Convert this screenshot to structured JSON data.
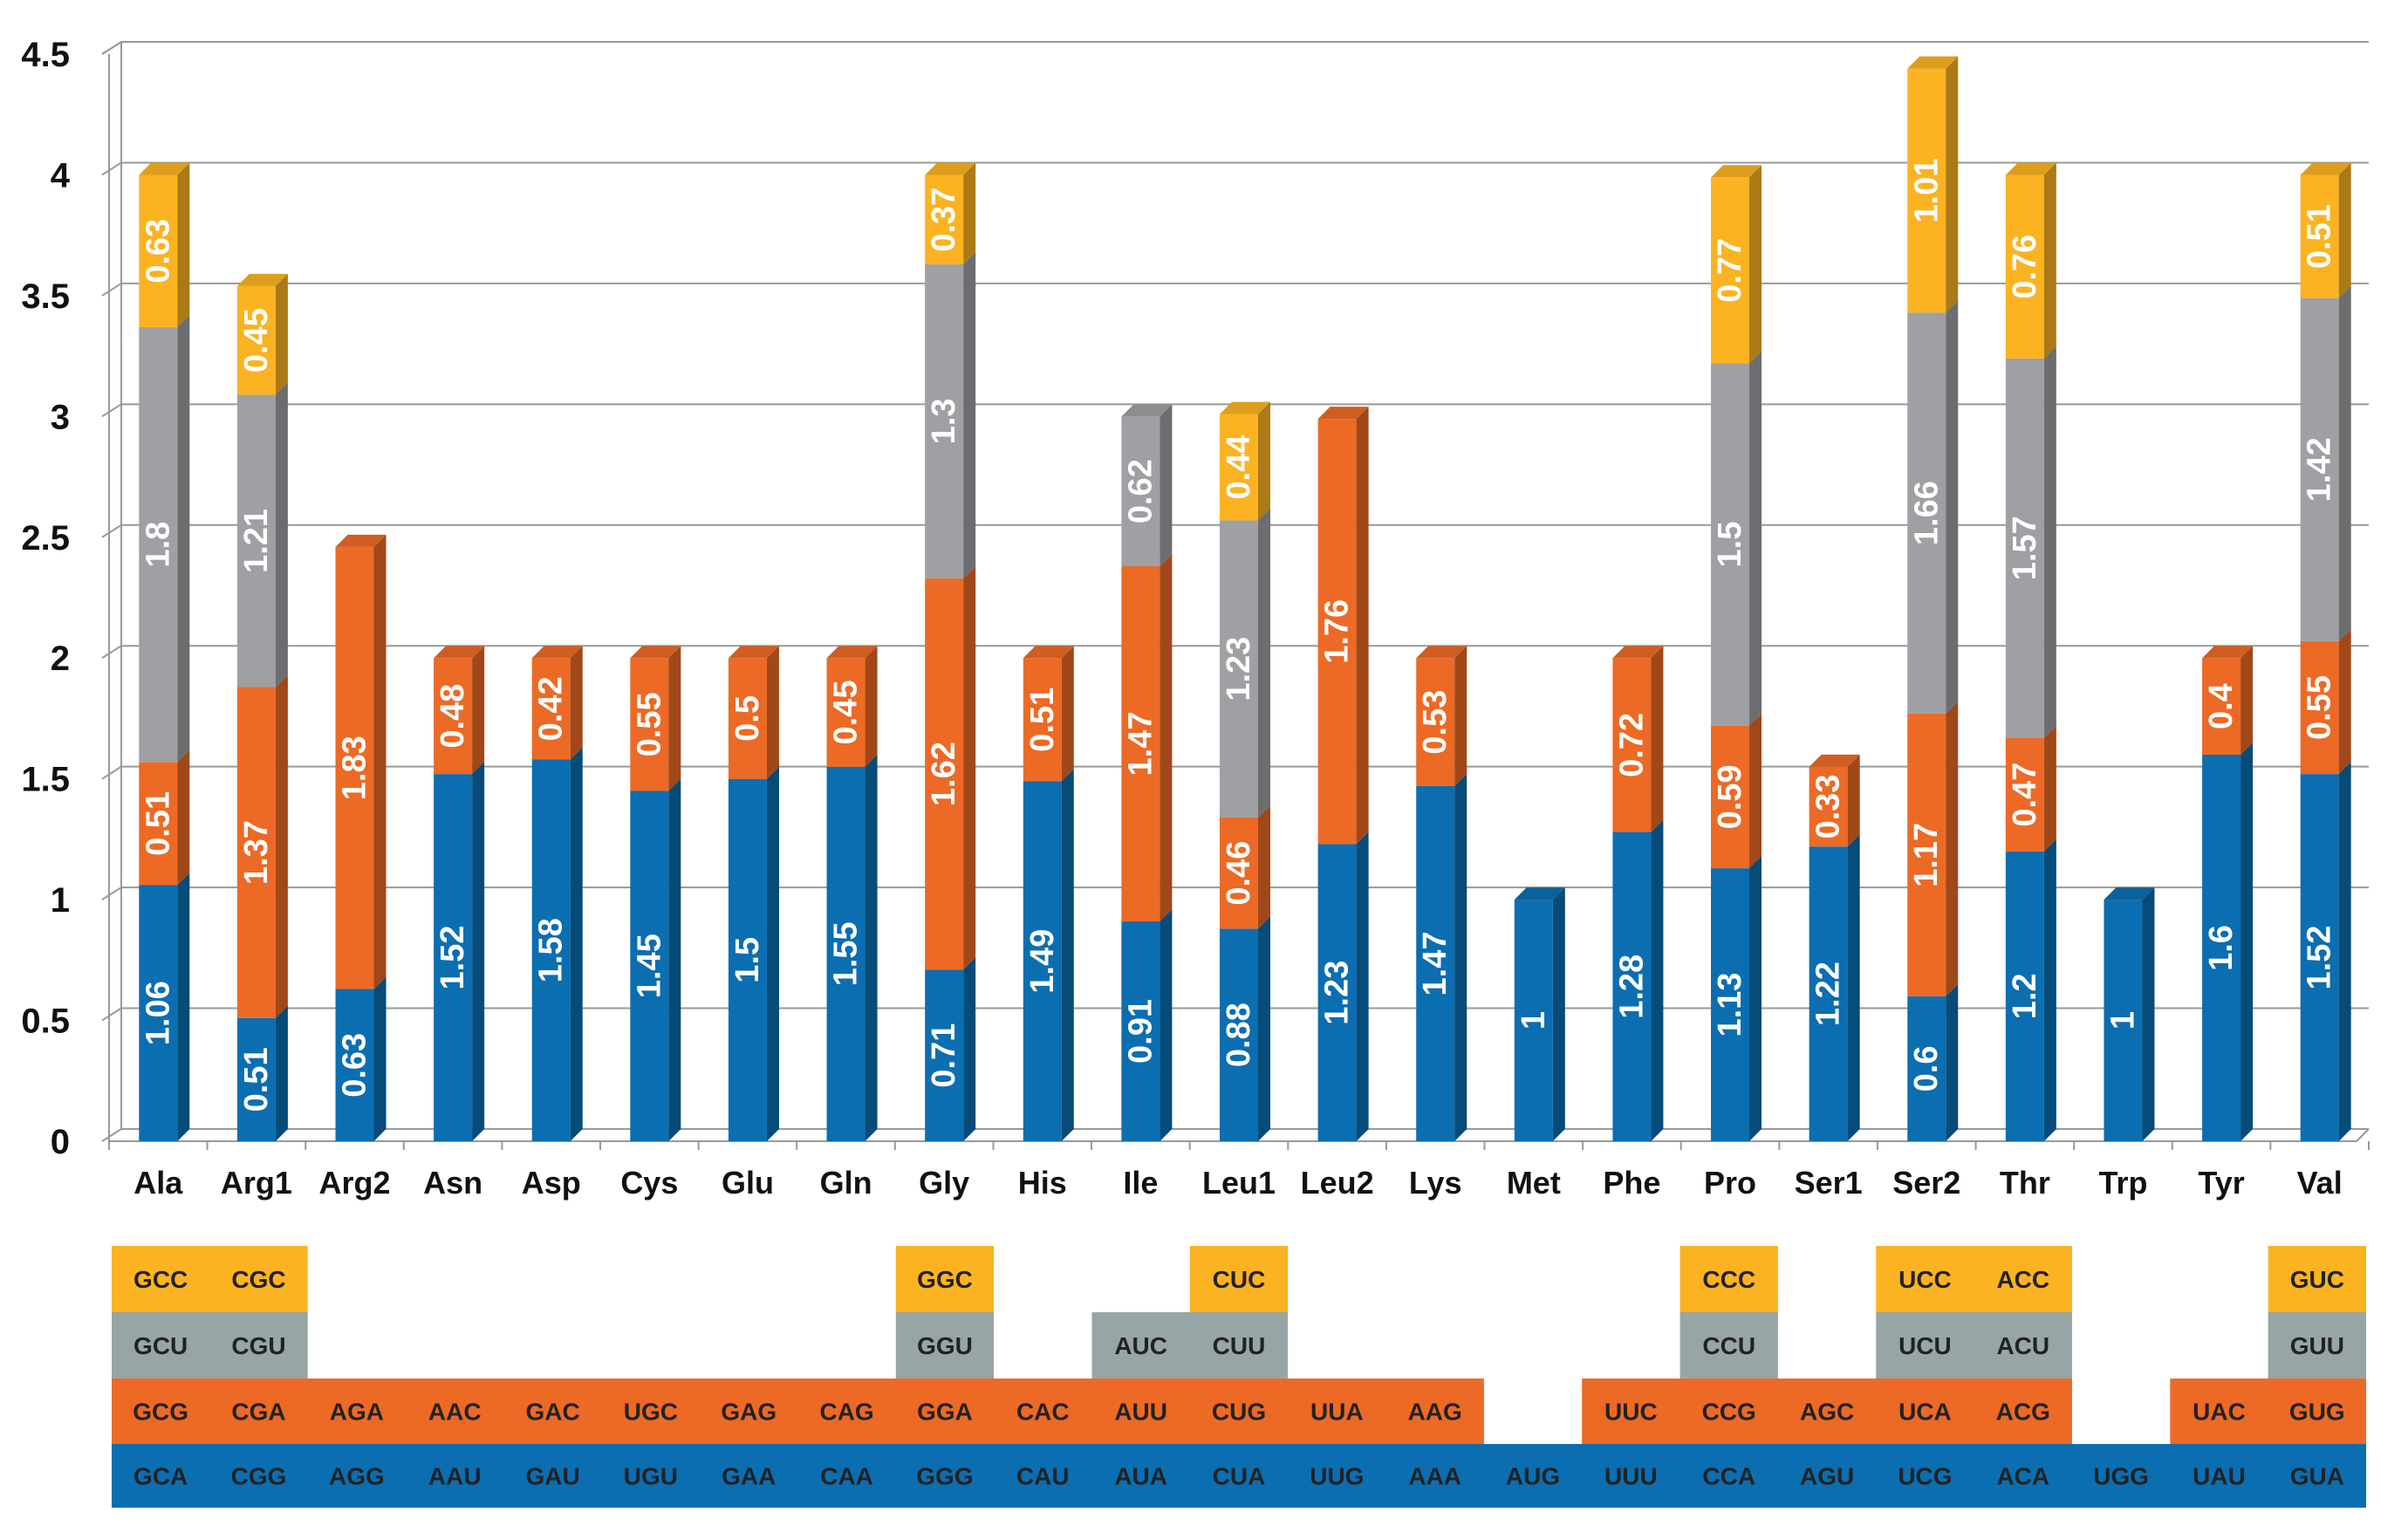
{
  "colors": {
    "blue": "#0b6eb1",
    "orange": "#ec6a25",
    "gray": "#9ea0a3",
    "yellow": "#fbb321",
    "codon_gray": "#97a5a6",
    "grid": "#999999"
  },
  "chart_data": {
    "type": "bar",
    "stacked": true,
    "ylim": [
      0,
      4.5
    ],
    "yticks": [
      "0",
      "0.5",
      "1",
      "1.5",
      "2",
      "2.5",
      "3",
      "3.5",
      "4",
      "4.5"
    ],
    "grid": true,
    "categories": [
      "Ala",
      "Arg1",
      "Arg2",
      "Asn",
      "Asp",
      "Cys",
      "Glu",
      "Gln",
      "Gly",
      "His",
      "Ile",
      "Leu1",
      "Leu2",
      "Lys",
      "Met",
      "Phe",
      "Pro",
      "Ser1",
      "Ser2",
      "Thr",
      "Trp",
      "Tyr",
      "Val"
    ],
    "series": [
      {
        "color": "blue",
        "values": [
          1.06,
          0.51,
          0.63,
          1.52,
          1.58,
          1.45,
          1.5,
          1.55,
          0.71,
          1.49,
          0.91,
          0.88,
          1.23,
          1.47,
          1,
          1.28,
          1.13,
          1.22,
          0.6,
          1.2,
          1,
          1.6,
          1.52
        ]
      },
      {
        "color": "orange",
        "values": [
          0.51,
          1.37,
          1.83,
          0.48,
          0.42,
          0.55,
          0.5,
          0.45,
          1.62,
          0.51,
          1.47,
          0.46,
          1.76,
          0.53,
          null,
          0.72,
          0.59,
          0.33,
          1.17,
          0.47,
          null,
          0.4,
          0.55
        ]
      },
      {
        "color": "gray",
        "values": [
          1.8,
          1.21,
          null,
          null,
          null,
          null,
          null,
          null,
          1.3,
          null,
          0.62,
          1.23,
          null,
          null,
          null,
          null,
          1.5,
          null,
          1.66,
          1.57,
          null,
          null,
          1.42
        ]
      },
      {
        "color": "yellow",
        "values": [
          0.63,
          0.45,
          null,
          null,
          null,
          null,
          null,
          null,
          0.37,
          null,
          null,
          0.44,
          null,
          null,
          null,
          null,
          0.77,
          null,
          1.01,
          0.76,
          null,
          null,
          0.51
        ]
      }
    ],
    "labels": [
      [
        "1.06",
        "0.51",
        "0.63",
        "1.52",
        "1.58",
        "1.45",
        "1.5",
        "1.55",
        "0.71",
        "1.49",
        "0.91",
        "0.88",
        "1.23",
        "1.47",
        "1",
        "1.28",
        "1.13",
        "1.22",
        "0.6",
        "1.2",
        "1",
        "1.6",
        "1.52"
      ],
      [
        "0.51",
        "1.37",
        "1.83",
        "0.48",
        "0.42",
        "0.55",
        "0.5",
        "0.45",
        "1.62",
        "0.51",
        "1.47",
        "0.46",
        "1.76",
        "0.53",
        "",
        "0.72",
        "0.59",
        "0.33",
        "1.17",
        "0.47",
        "",
        "0.4",
        "0.55"
      ],
      [
        "1.8",
        "1.21",
        "",
        "",
        "",
        "",
        "",
        "",
        "1.3",
        "",
        "0.62",
        "1.23",
        "",
        "",
        "",
        "",
        "1.5",
        "",
        "1.66",
        "1.57",
        "",
        "",
        "1.42"
      ],
      [
        "0.63",
        "0.45",
        "",
        "",
        "",
        "",
        "",
        "",
        "0.37",
        "",
        "",
        "0.44",
        "",
        "",
        "",
        "",
        "0.77",
        "",
        "1.01",
        "0.76",
        "",
        "",
        "0.51"
      ]
    ]
  },
  "codon_table": {
    "rows": [
      {
        "color": "yellow",
        "cells": [
          "GCC",
          "CGC",
          "",
          "",
          "",
          "",
          "",
          "",
          "GGC",
          "",
          "",
          "CUC",
          "",
          "",
          "",
          "",
          "CCC",
          "",
          "UCC",
          "ACC",
          "",
          "",
          "GUC"
        ]
      },
      {
        "color": "codon_gray",
        "cells": [
          "GCU",
          "CGU",
          "",
          "",
          "",
          "",
          "",
          "",
          "GGU",
          "",
          "AUC",
          "CUU",
          "",
          "",
          "",
          "",
          "CCU",
          "",
          "UCU",
          "ACU",
          "",
          "",
          "GUU"
        ]
      },
      {
        "color": "orange",
        "cells": [
          "GCG",
          "CGA",
          "AGA",
          "AAC",
          "GAC",
          "UGC",
          "GAG",
          "CAG",
          "GGA",
          "CAC",
          "AUU",
          "CUG",
          "UUA",
          "AAG",
          "",
          "UUC",
          "CCG",
          "AGC",
          "UCA",
          "ACG",
          "",
          "UAC",
          "GUG"
        ]
      },
      {
        "color": "blue",
        "cells": [
          "GCA",
          "CGG",
          "AGG",
          "AAU",
          "GAU",
          "UGU",
          "GAA",
          "CAA",
          "GGG",
          "CAU",
          "AUA",
          "CUA",
          "UUG",
          "AAA",
          "AUG",
          "UUU",
          "CCA",
          "AGU",
          "UCG",
          "ACA",
          "UGG",
          "UAU",
          "GUA"
        ]
      }
    ]
  }
}
